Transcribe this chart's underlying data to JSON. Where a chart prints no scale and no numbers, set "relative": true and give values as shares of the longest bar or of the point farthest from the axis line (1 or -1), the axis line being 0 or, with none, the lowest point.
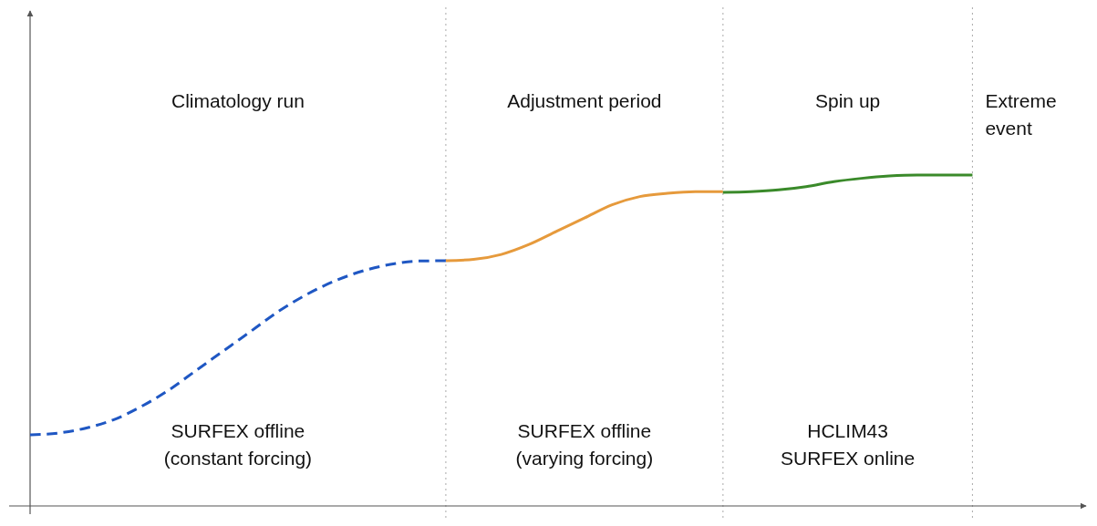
{
  "chart_data": {
    "type": "line",
    "relative": true,
    "grid": "x",
    "categories": [
      null,
      null,
      null,
      null,
      null,
      null,
      null,
      null,
      null,
      null,
      null,
      null,
      null,
      null,
      null,
      null,
      null,
      null,
      null,
      null,
      null,
      null,
      null,
      null,
      null,
      null,
      null,
      null,
      null,
      null,
      null,
      null,
      null,
      null,
      null,
      null,
      null,
      null,
      null
    ],
    "series": [
      {
        "color": "#1f57c3",
        "line_style": "dashed",
        "values": [
          0.215,
          0.22,
          0.235,
          0.26,
          0.3,
          0.35,
          0.41,
          0.47,
          0.53,
          0.59,
          0.64,
          0.68,
          0.71,
          0.73,
          0.74,
          0.741,
          null,
          null,
          null,
          null,
          null,
          null,
          null,
          null,
          null,
          null,
          null,
          null,
          null,
          null,
          null,
          null,
          null,
          null,
          null,
          null,
          null,
          null,
          null
        ]
      },
      {
        "color": "#e69a3c",
        "line_style": "solid",
        "values": [
          null,
          null,
          null,
          null,
          null,
          null,
          null,
          null,
          null,
          null,
          null,
          null,
          null,
          null,
          null,
          0.741,
          0.745,
          0.76,
          0.79,
          0.83,
          0.87,
          0.91,
          0.935,
          0.945,
          0.95,
          0.95,
          null,
          null,
          null,
          null,
          null,
          null,
          null,
          null,
          null,
          null,
          null,
          null,
          null
        ]
      },
      {
        "color": "#3a8a2a",
        "line_style": "solid",
        "values": [
          null,
          null,
          null,
          null,
          null,
          null,
          null,
          null,
          null,
          null,
          null,
          null,
          null,
          null,
          null,
          null,
          null,
          null,
          null,
          null,
          null,
          null,
          null,
          null,
          null,
          0.948,
          0.95,
          0.955,
          0.965,
          0.98,
          0.99,
          0.997,
          1,
          1,
          1,
          null,
          null,
          null,
          null
        ]
      }
    ],
    "annotations": [
      "Climatology run",
      "Adjustment period",
      "Spin up",
      "Extreme event",
      "SURFEX offline (constant forcing)",
      "SURFEX offline (varying forcing)",
      "HCLIM43 SURFEX online"
    ]
  }
}
